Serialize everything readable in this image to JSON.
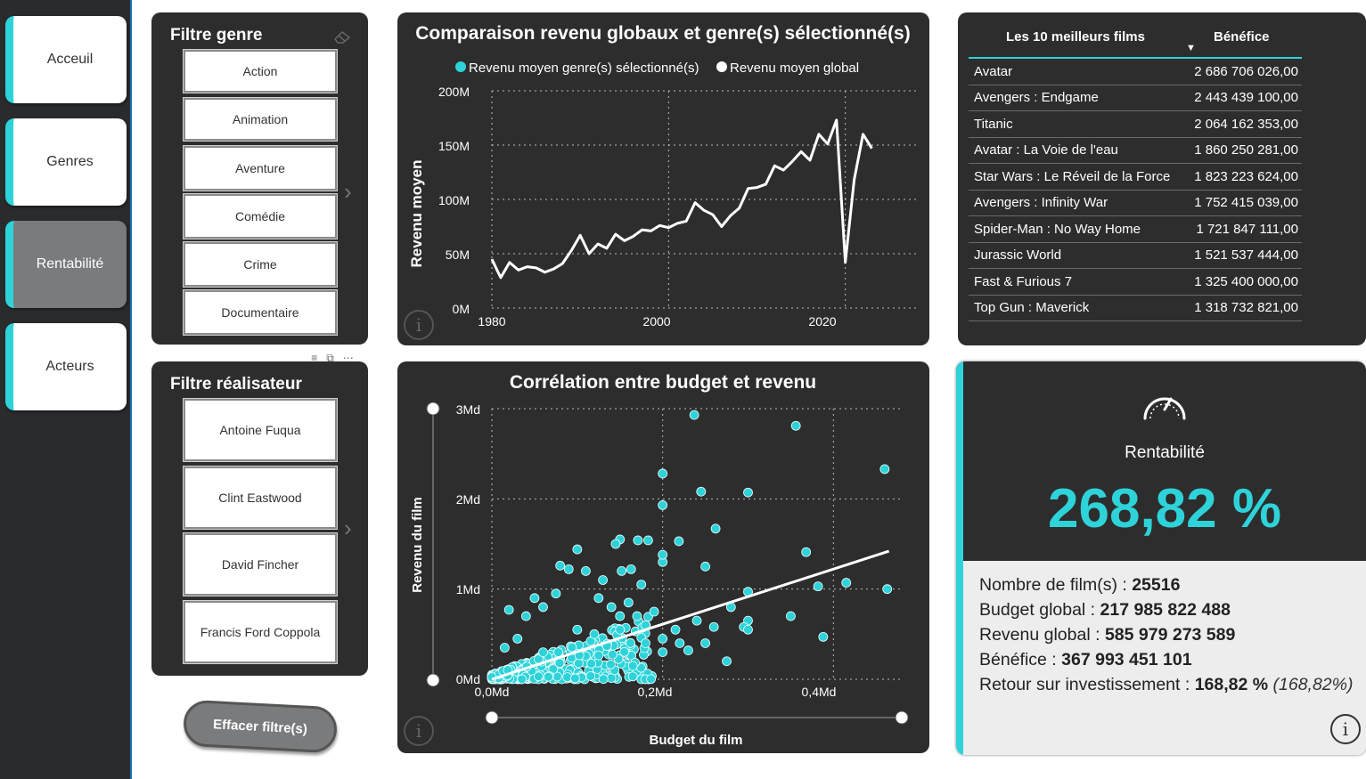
{
  "nav": {
    "items": [
      {
        "label": "Acceuil",
        "active": false
      },
      {
        "label": "Genres",
        "active": false
      },
      {
        "label": "Rentabilité",
        "active": true
      },
      {
        "label": "Acteurs",
        "active": false
      }
    ]
  },
  "genre_filter": {
    "title": "Filtre genre",
    "items": [
      "Action",
      "Animation",
      "Aventure",
      "Comédie",
      "Crime",
      "Documentaire"
    ]
  },
  "director_filter": {
    "title": "Filtre réalisateur",
    "items": [
      "Antoine Fuqua",
      "Clint Eastwood",
      "David Fincher",
      "Francis Ford Coppola"
    ]
  },
  "clear_button": {
    "label": "Effacer filtre(s)"
  },
  "colors": {
    "accent": "#2ed3d9",
    "panel": "#2d2d2d",
    "nav": "#2a2b2d",
    "line": "#ffffff"
  },
  "line_chart": {
    "title": "Comparaison revenu globaux et genre(s) sélectionné(s)",
    "legend": [
      {
        "label": "Revenu moyen genre(s) sélectionné(s)",
        "color": "#2ed3d9"
      },
      {
        "label": "Revenu moyen global",
        "color": "#ffffff"
      }
    ],
    "ylabel": "Revenu moyen",
    "y_ticks": [
      "0M",
      "50M",
      "100M",
      "150M",
      "200M"
    ],
    "x_ticks": [
      "1980",
      "2000",
      "2020"
    ]
  },
  "scatter_chart": {
    "title": "Corrélation entre budget et revenu",
    "xlabel": "Budget du film",
    "ylabel": "Revenu du film",
    "y_ticks": [
      "0Md",
      "1Md",
      "2Md",
      "3Md"
    ],
    "x_ticks": [
      "0,0Md",
      "0,2Md",
      "0,4Md"
    ]
  },
  "chart_data": [
    {
      "type": "line",
      "title": "Comparaison revenu globaux et genre(s) sélectionné(s)",
      "xlabel": "",
      "ylabel": "Revenu moyen",
      "ylim": [
        0,
        200
      ],
      "xlim": [
        1980,
        2028
      ],
      "grid": true,
      "legend_position": "top",
      "series": [
        {
          "name": "Revenu moyen global",
          "x": [
            1980,
            1981,
            1982,
            1983,
            1984,
            1985,
            1986,
            1987,
            1988,
            1989,
            1990,
            1991,
            1992,
            1993,
            1994,
            1995,
            1996,
            1997,
            1998,
            1999,
            2000,
            2001,
            2002,
            2003,
            2004,
            2005,
            2006,
            2007,
            2008,
            2009,
            2010,
            2011,
            2012,
            2013,
            2014,
            2015,
            2016,
            2017,
            2018,
            2019,
            2020,
            2021,
            2022,
            2023
          ],
          "values": [
            45,
            28,
            42,
            35,
            38,
            37,
            33,
            36,
            41,
            53,
            67,
            50,
            59,
            55,
            68,
            62,
            66,
            72,
            71,
            76,
            74,
            78,
            80,
            97,
            90,
            86,
            75,
            85,
            92,
            110,
            111,
            114,
            131,
            127,
            135,
            144,
            136,
            160,
            151,
            173,
            42,
            118,
            160,
            147
          ]
        }
      ]
    },
    {
      "type": "scatter",
      "title": "Corrélation entre budget et revenu",
      "xlabel": "Budget du film",
      "ylabel": "Revenu du film",
      "xlim": [
        0,
        0.48
      ],
      "ylim": [
        0,
        3
      ],
      "grid": true,
      "series": [
        {
          "name": "",
          "points": [
            [
              0.237,
              2.93
            ],
            [
              0.356,
              2.81
            ],
            [
              0.46,
              2.33
            ],
            [
              0.2,
              2.28
            ],
            [
              0.245,
              2.08
            ],
            [
              0.3,
              2.07
            ],
            [
              0.2,
              1.93
            ],
            [
              0.262,
              1.67
            ],
            [
              0.15,
              1.55
            ],
            [
              0.171,
              1.54
            ],
            [
              0.183,
              1.54
            ],
            [
              0.219,
              1.53
            ],
            [
              0.145,
              1.5
            ],
            [
              0.1,
              1.44
            ],
            [
              0.368,
              1.41
            ],
            [
              0.2,
              1.3
            ],
            [
              0.25,
              1.25
            ],
            [
              0.152,
              1.2
            ],
            [
              0.163,
              1.22
            ],
            [
              0.2,
              1.38
            ],
            [
              0.08,
              1.26
            ],
            [
              0.11,
              1.2
            ],
            [
              0.09,
              1.22
            ],
            [
              0.13,
              1.1
            ],
            [
              0.175,
              1.05
            ],
            [
              0.3,
              0.97
            ],
            [
              0.382,
              1.03
            ],
            [
              0.415,
              1.07
            ],
            [
              0.463,
              1.0
            ],
            [
              0.28,
              0.8
            ],
            [
              0.3,
              0.65
            ],
            [
              0.35,
              0.7
            ],
            [
              0.388,
              0.47
            ],
            [
              0.26,
              0.58
            ],
            [
              0.295,
              0.58
            ],
            [
              0.22,
              0.4
            ],
            [
              0.25,
              0.4
            ],
            [
              0.275,
              0.2
            ],
            [
              0.215,
              0.55
            ],
            [
              0.24,
              0.65
            ],
            [
              0.3,
              0.55
            ],
            [
              0.02,
              0.77
            ],
            [
              0.05,
              0.9
            ],
            [
              0.06,
              0.8
            ],
            [
              0.075,
              0.95
            ],
            [
              0.04,
              0.7
            ],
            [
              0.125,
              0.9
            ],
            [
              0.14,
              0.8
            ],
            [
              0.15,
              0.7
            ],
            [
              0.16,
              0.85
            ],
            [
              0.18,
              0.6
            ],
            [
              0.19,
              0.75
            ],
            [
              0.2,
              0.45
            ],
            [
              0.2,
              0.3
            ],
            [
              0.23,
              0.32
            ],
            [
              0.1,
              0.55
            ],
            [
              0.12,
              0.5
            ],
            [
              0.03,
              0.45
            ],
            [
              0.015,
              0.35
            ],
            [
              0.06,
              0.3
            ],
            [
              0.18,
              0.4
            ],
            [
              0.15,
              0.55
            ],
            [
              0.17,
              0.7
            ]
          ]
        },
        {
          "name": "",
          "type": "trend",
          "x": [
            0.0,
            0.465
          ],
          "values": [
            0.0,
            1.42
          ]
        }
      ]
    }
  ],
  "top10": {
    "col1": "Les 10 meilleurs films",
    "col2": "Bénéfice",
    "rows": [
      {
        "film": "Avatar",
        "value": "2 686 706 026,00"
      },
      {
        "film": "Avengers : Endgame",
        "value": "2 443 439 100,00"
      },
      {
        "film": "Titanic",
        "value": "2 064 162 353,00"
      },
      {
        "film": "Avatar : La Voie de l'eau",
        "value": "1 860 250 281,00"
      },
      {
        "film": "Star Wars : Le Réveil de la Force",
        "value": "1 823 223 624,00"
      },
      {
        "film": "Avengers : Infinity War",
        "value": "1 752 415 039,00"
      },
      {
        "film": "Spider-Man : No Way Home",
        "value": "1 721 847 111,00"
      },
      {
        "film": "Jurassic World",
        "value": "1 521 537 444,00"
      },
      {
        "film": "Fast & Furious 7",
        "value": "1 325 400 000,00"
      },
      {
        "film": "Top Gun : Maverick",
        "value": "1 318 732 821,00"
      }
    ]
  },
  "kpi": {
    "title": "Rentabilité",
    "value": "268,82 %",
    "lines": [
      {
        "label": "Nombre de film(s) : ",
        "value": "25516",
        "extra": ""
      },
      {
        "label": "Budget global : ",
        "value": "217 985 822 488",
        "extra": ""
      },
      {
        "label": "Revenu global : ",
        "value": "585 979 273 589",
        "extra": ""
      },
      {
        "label": "Bénéfice : ",
        "value": "367 993 451 101",
        "extra": ""
      },
      {
        "label": "Retour sur investissement : ",
        "value": "168,82 %",
        "extra": "(168,82%)"
      }
    ]
  },
  "icons": {
    "info": "ⓘ",
    "eraser": "eraser-icon",
    "speedometer": "speedometer-icon"
  }
}
